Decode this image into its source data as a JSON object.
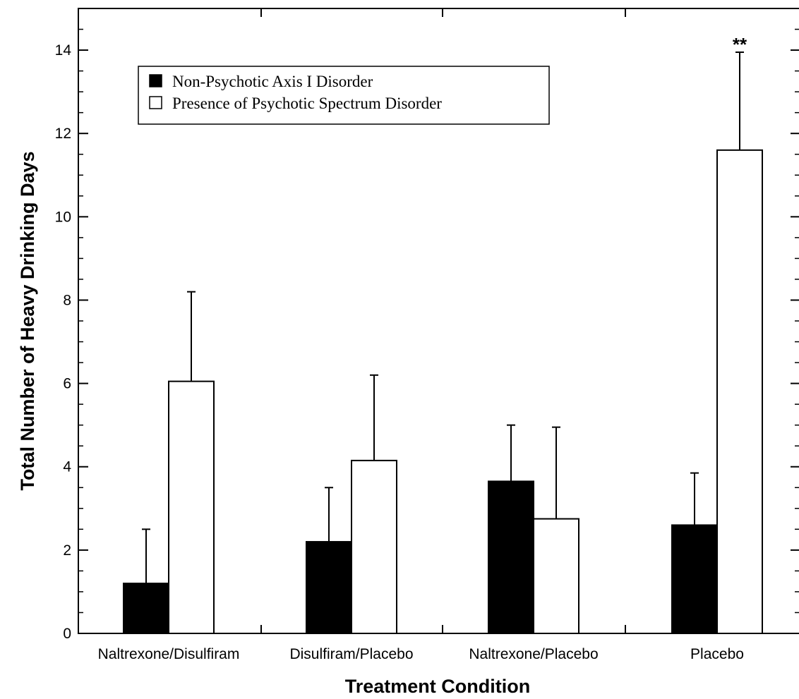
{
  "chart_data": {
    "type": "bar",
    "title": "",
    "xlabel": "Treatment Condition",
    "ylabel": "Total Number of Heavy Drinking Days",
    "ylim": [
      0,
      15
    ],
    "yticks": [
      0,
      2,
      4,
      6,
      8,
      10,
      12,
      14
    ],
    "categories": [
      "Naltrexone/Disulfiram",
      "Disulfiram/Placebo",
      "Naltrexone/Placebo",
      "Placebo"
    ],
    "series": [
      {
        "name": "Non-Psychotic Axis I Disorder",
        "color": "#000000",
        "values": [
          1.2,
          2.2,
          3.65,
          2.6
        ],
        "error": [
          1.3,
          1.3,
          1.35,
          1.25
        ]
      },
      {
        "name": "Presence of Psychotic Spectrum Disorder",
        "color": "#ffffff",
        "values": [
          6.05,
          4.15,
          2.75,
          11.6
        ],
        "error": [
          2.15,
          2.05,
          2.2,
          2.35
        ]
      }
    ],
    "annotations": [
      {
        "text": "**",
        "category": "Placebo",
        "series": 1
      }
    ],
    "legend_position": "top-left",
    "grid": false
  }
}
